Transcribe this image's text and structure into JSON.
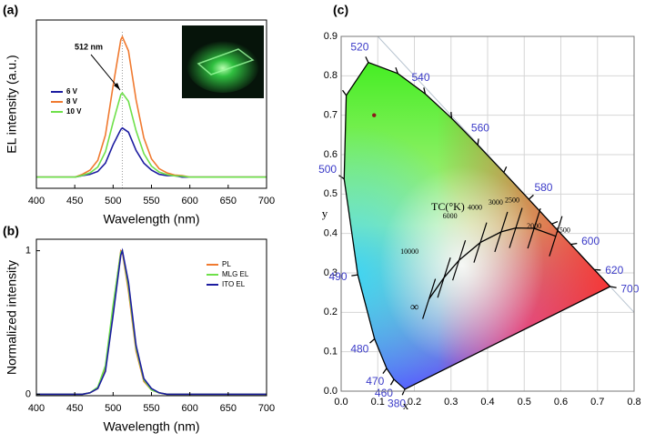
{
  "chart_data": [
    {
      "type": "line",
      "panel_label": "(a)",
      "xlabel": "Wavelength (nm)",
      "ylabel": "EL intensity (a.u.)",
      "x": [
        400,
        410,
        420,
        430,
        440,
        450,
        460,
        470,
        480,
        490,
        500,
        510,
        512,
        520,
        530,
        540,
        550,
        560,
        570,
        580,
        590,
        600,
        610,
        620,
        630,
        640,
        650,
        660,
        670,
        680,
        690,
        700
      ],
      "xlim": [
        400,
        700
      ],
      "xticks": [
        400,
        450,
        500,
        550,
        600,
        650,
        700
      ],
      "ylim": [
        -0.08,
        1.12
      ],
      "legend": "upper left",
      "annotation": "512 nm",
      "marker_x": 512,
      "series": [
        {
          "name": "6 V",
          "color": "#1c1ca0",
          "values": [
            0,
            0,
            0,
            0,
            0,
            0,
            0.01,
            0.02,
            0.04,
            0.1,
            0.23,
            0.34,
            0.35,
            0.32,
            0.19,
            0.1,
            0.05,
            0.02,
            0.01,
            0.01,
            0,
            0,
            0,
            0,
            0,
            0,
            0,
            0,
            0,
            0,
            0,
            0
          ]
        },
        {
          "name": "8 V",
          "color": "#f07a30",
          "values": [
            0,
            0,
            0,
            0,
            0,
            0,
            0.02,
            0.05,
            0.12,
            0.3,
            0.65,
            0.98,
            1,
            0.9,
            0.55,
            0.28,
            0.13,
            0.06,
            0.03,
            0.015,
            0.01,
            0,
            0,
            0,
            0,
            0,
            0,
            0,
            0,
            0,
            0,
            0
          ]
        },
        {
          "name": "10 V",
          "color": "#6ee04a",
          "values": [
            0,
            0,
            0,
            0,
            0,
            0,
            0.012,
            0.03,
            0.072,
            0.18,
            0.39,
            0.588,
            0.6,
            0.54,
            0.33,
            0.168,
            0.078,
            0.036,
            0.018,
            0.009,
            0.006,
            0,
            0,
            0,
            0,
            0,
            0,
            0,
            0,
            0,
            0,
            0
          ]
        }
      ]
    },
    {
      "type": "line",
      "panel_label": "(b)",
      "xlabel": "Wavelength (nm)",
      "ylabel": "Normalized intensity",
      "x": [
        400,
        410,
        420,
        430,
        440,
        450,
        460,
        470,
        480,
        490,
        500,
        510,
        512,
        520,
        530,
        540,
        550,
        560,
        570,
        580,
        590,
        600,
        610,
        620,
        630,
        640,
        650,
        660,
        670,
        680,
        690,
        700
      ],
      "xlim": [
        400,
        700
      ],
      "xticks": [
        400,
        450,
        500,
        550,
        600,
        650,
        700
      ],
      "ylim": [
        -0.01,
        1.08
      ],
      "yticks": [
        0,
        1
      ],
      "legend": "upper right",
      "series": [
        {
          "name": "PL",
          "color": "#f07a30",
          "values": [
            0,
            0,
            0,
            0,
            0,
            0,
            0,
            0.01,
            0.04,
            0.18,
            0.6,
            1,
            0.99,
            0.72,
            0.3,
            0.09,
            0.03,
            0.01,
            0,
            0,
            0,
            0,
            0,
            0,
            0,
            0,
            0,
            0,
            0,
            0,
            0,
            0
          ]
        },
        {
          "name": "MLG EL",
          "color": "#6ee04a",
          "values": [
            0,
            0,
            0,
            0,
            0,
            0,
            0,
            0.01,
            0.05,
            0.2,
            0.62,
            0.99,
            1,
            0.75,
            0.32,
            0.1,
            0.03,
            0.01,
            0,
            0,
            0,
            0,
            0,
            0,
            0,
            0,
            0,
            0,
            0,
            0,
            0,
            0
          ]
        },
        {
          "name": "ITO  EL",
          "color": "#1c1ca0",
          "values": [
            0,
            0,
            0,
            0,
            0,
            0,
            0,
            0.01,
            0.04,
            0.16,
            0.55,
            0.97,
            1,
            0.78,
            0.34,
            0.11,
            0.04,
            0.01,
            0,
            0,
            0,
            0,
            0,
            0,
            0,
            0,
            0,
            0,
            0,
            0,
            0,
            0
          ]
        }
      ]
    },
    {
      "type": "chromaticity",
      "panel_label": "(c)",
      "xlabel": "x",
      "ylabel": "y",
      "xlim": [
        0,
        0.8
      ],
      "ylim": [
        0,
        0.9
      ],
      "xticks": [
        {
          "value": 0,
          "label": "0.0"
        },
        0.1,
        0.2,
        0.3,
        0.4,
        0.5,
        0.6,
        0.7,
        0.8
      ],
      "yticks": [
        {
          "value": 0,
          "label": "0.0"
        },
        0.1,
        0.2,
        0.3,
        0.4,
        0.5,
        0.6,
        0.7,
        0.8,
        0.9
      ],
      "grid": true,
      "locus": {
        "x": [
          0.1741,
          0.144,
          0.1241,
          0.0913,
          0.0454,
          0.0082,
          0.0139,
          0.0743,
          0.1547,
          0.2296,
          0.3016,
          0.3731,
          0.4441,
          0.5125,
          0.5752,
          0.627,
          0.6915,
          0.7347
        ],
        "y": [
          0.005,
          0.0297,
          0.0578,
          0.1327,
          0.295,
          0.5384,
          0.7502,
          0.8338,
          0.8059,
          0.7543,
          0.6923,
          0.6245,
          0.5547,
          0.4866,
          0.4242,
          0.3725,
          0.3083,
          0.2653
        ],
        "labels": [
          "380",
          "460",
          "470",
          "480",
          "490",
          "500",
          null,
          "520",
          null,
          "540",
          null,
          "560",
          null,
          "580",
          null,
          "600",
          "620",
          "700"
        ]
      },
      "planck": {
        "title": "TC(°K)",
        "labels": [
          "∞",
          "10000",
          "6000",
          "4000",
          "3000",
          "2500",
          "2000",
          "1500"
        ],
        "x": [
          0.24,
          0.281,
          0.322,
          0.38,
          0.437,
          0.477,
          0.527,
          0.586
        ],
        "y": [
          0.234,
          0.288,
          0.332,
          0.377,
          0.404,
          0.414,
          0.413,
          0.393
        ]
      },
      "series": [
        {
          "color": "#8b1a1a",
          "x": [
            0.09
          ],
          "values": [
            0.7
          ]
        }
      ]
    }
  ]
}
